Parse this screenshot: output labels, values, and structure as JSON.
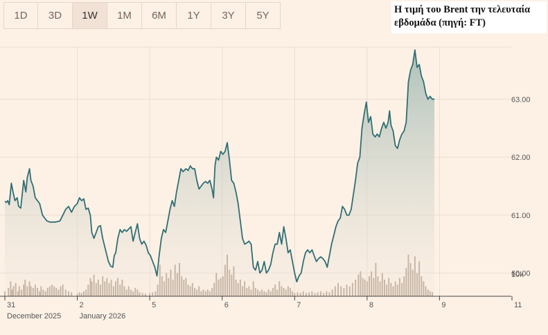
{
  "tabs": [
    "1D",
    "3D",
    "1W",
    "1M",
    "6M",
    "1Y",
    "3Y",
    "5Y"
  ],
  "active_tab": "1W",
  "colors": {
    "line": "#2f6e73",
    "volume": "#c7b6a6",
    "background": "#fdf1e6"
  },
  "chart_data": {
    "type": "line",
    "title": "Η τιμή του Brent την τελευταία εβδομάδα (πηγή: FT)",
    "ylim": [
      59.6,
      63.9
    ],
    "yticks": [
      60,
      61,
      62,
      63
    ],
    "ytick_labels": [
      "60.00",
      "61.00",
      "62.00",
      "63.00"
    ],
    "volume_label": "10k",
    "x_ticks": [
      {
        "x": 0,
        "label": "31",
        "sub": "December 2025"
      },
      {
        "x": 1,
        "label": "2",
        "sub": "January 2026"
      },
      {
        "x": 2,
        "label": "5"
      },
      {
        "x": 3,
        "label": "6"
      },
      {
        "x": 4,
        "label": "7"
      },
      {
        "x": 5,
        "label": "8"
      },
      {
        "x": 6,
        "label": "9"
      },
      {
        "x": 7,
        "label": "11"
      }
    ],
    "grid": true,
    "legend": "none",
    "price_series": [
      [
        0.0,
        61.24
      ],
      [
        0.02,
        61.22
      ],
      [
        0.04,
        61.25
      ],
      [
        0.06,
        61.18
      ],
      [
        0.09,
        61.55
      ],
      [
        0.11,
        61.42
      ],
      [
        0.14,
        61.25
      ],
      [
        0.17,
        61.3
      ],
      [
        0.19,
        61.15
      ],
      [
        0.22,
        61.12
      ],
      [
        0.26,
        61.6
      ],
      [
        0.29,
        61.4
      ],
      [
        0.31,
        61.65
      ],
      [
        0.34,
        61.8
      ],
      [
        0.36,
        61.6
      ],
      [
        0.39,
        61.5
      ],
      [
        0.42,
        61.3
      ],
      [
        0.45,
        61.25
      ],
      [
        0.48,
        61.2
      ],
      [
        0.52,
        61.0
      ],
      [
        0.55,
        60.95
      ],
      [
        0.58,
        60.9
      ],
      [
        0.62,
        60.88
      ],
      [
        0.7,
        60.88
      ],
      [
        0.76,
        60.9
      ],
      [
        0.8,
        61.0
      ],
      [
        0.84,
        61.1
      ],
      [
        0.88,
        61.15
      ],
      [
        0.92,
        61.05
      ],
      [
        0.96,
        61.15
      ],
      [
        1.0,
        61.2
      ],
      [
        1.03,
        61.3
      ],
      [
        1.06,
        61.25
      ],
      [
        1.09,
        61.28
      ],
      [
        1.12,
        61.1
      ],
      [
        1.15,
        61.12
      ],
      [
        1.18,
        61.0
      ],
      [
        1.2,
        60.7
      ],
      [
        1.23,
        60.6
      ],
      [
        1.26,
        60.7
      ],
      [
        1.29,
        60.8
      ],
      [
        1.32,
        60.82
      ],
      [
        1.35,
        60.6
      ],
      [
        1.38,
        60.45
      ],
      [
        1.4,
        60.35
      ],
      [
        1.43,
        60.2
      ],
      [
        1.46,
        60.12
      ],
      [
        1.49,
        60.1
      ],
      [
        1.51,
        60.3
      ],
      [
        1.53,
        60.35
      ],
      [
        1.56,
        60.6
      ],
      [
        1.59,
        60.75
      ],
      [
        1.62,
        60.7
      ],
      [
        1.65,
        60.75
      ],
      [
        1.68,
        60.72
      ],
      [
        1.71,
        60.76
      ],
      [
        1.74,
        60.8
      ],
      [
        1.77,
        60.55
      ],
      [
        1.8,
        60.7
      ],
      [
        1.83,
        60.85
      ],
      [
        1.86,
        60.6
      ],
      [
        1.89,
        60.5
      ],
      [
        1.92,
        60.55
      ],
      [
        1.95,
        60.48
      ],
      [
        1.98,
        60.35
      ],
      [
        2.01,
        60.3
      ],
      [
        2.04,
        60.2
      ],
      [
        2.07,
        60.1
      ],
      [
        2.1,
        59.95
      ],
      [
        2.13,
        60.3
      ],
      [
        2.16,
        60.6
      ],
      [
        2.19,
        60.75
      ],
      [
        2.22,
        60.7
      ],
      [
        2.25,
        60.9
      ],
      [
        2.28,
        61.1
      ],
      [
        2.31,
        61.25
      ],
      [
        2.34,
        61.15
      ],
      [
        2.37,
        61.4
      ],
      [
        2.4,
        61.6
      ],
      [
        2.43,
        61.8
      ],
      [
        2.46,
        61.75
      ],
      [
        2.5,
        61.8
      ],
      [
        2.53,
        61.77
      ],
      [
        2.56,
        61.85
      ],
      [
        2.59,
        61.8
      ],
      [
        2.62,
        61.8
      ],
      [
        2.65,
        61.6
      ],
      [
        2.68,
        61.45
      ],
      [
        2.71,
        61.5
      ],
      [
        2.74,
        61.55
      ],
      [
        2.77,
        61.58
      ],
      [
        2.8,
        61.55
      ],
      [
        2.83,
        61.6
      ],
      [
        2.86,
        61.45
      ],
      [
        2.88,
        61.3
      ],
      [
        2.9,
        61.85
      ],
      [
        2.92,
        62.0
      ],
      [
        2.95,
        61.95
      ],
      [
        2.98,
        62.1
      ],
      [
        3.01,
        62.05
      ],
      [
        3.04,
        62.1
      ],
      [
        3.07,
        62.25
      ],
      [
        3.1,
        61.95
      ],
      [
        3.13,
        61.6
      ],
      [
        3.16,
        61.55
      ],
      [
        3.19,
        61.4
      ],
      [
        3.22,
        61.2
      ],
      [
        3.25,
        60.9
      ],
      [
        3.28,
        60.6
      ],
      [
        3.31,
        60.5
      ],
      [
        3.34,
        60.52
      ],
      [
        3.37,
        60.55
      ],
      [
        3.4,
        60.5
      ],
      [
        3.43,
        60.1
      ],
      [
        3.46,
        60.05
      ],
      [
        3.49,
        60.2
      ],
      [
        3.52,
        60.0
      ],
      [
        3.55,
        60.05
      ],
      [
        3.58,
        60.2
      ],
      [
        3.61,
        60.0
      ],
      [
        3.64,
        60.05
      ],
      [
        3.67,
        60.15
      ],
      [
        3.7,
        60.35
      ],
      [
        3.73,
        60.5
      ],
      [
        3.76,
        60.5
      ],
      [
        3.79,
        60.7
      ],
      [
        3.82,
        60.5
      ],
      [
        3.85,
        60.8
      ],
      [
        3.88,
        60.6
      ],
      [
        3.91,
        60.35
      ],
      [
        3.94,
        60.4
      ],
      [
        3.97,
        60.2
      ],
      [
        4.0,
        60.0
      ],
      [
        4.03,
        59.85
      ],
      [
        4.06,
        59.95
      ],
      [
        4.09,
        60.0
      ],
      [
        4.12,
        60.2
      ],
      [
        4.15,
        60.35
      ],
      [
        4.18,
        60.4
      ],
      [
        4.21,
        60.35
      ],
      [
        4.24,
        60.4
      ],
      [
        4.27,
        60.3
      ],
      [
        4.3,
        60.2
      ],
      [
        4.33,
        60.25
      ],
      [
        4.36,
        60.28
      ],
      [
        4.39,
        60.25
      ],
      [
        4.42,
        60.2
      ],
      [
        4.45,
        60.1
      ],
      [
        4.48,
        60.3
      ],
      [
        4.51,
        60.5
      ],
      [
        4.54,
        60.65
      ],
      [
        4.57,
        60.8
      ],
      [
        4.6,
        60.9
      ],
      [
        4.63,
        60.95
      ],
      [
        4.66,
        61.15
      ],
      [
        4.69,
        61.1
      ],
      [
        4.72,
        61.0
      ],
      [
        4.75,
        61.0
      ],
      [
        4.78,
        61.1
      ],
      [
        4.81,
        61.35
      ],
      [
        4.84,
        61.6
      ],
      [
        4.87,
        61.9
      ],
      [
        4.9,
        62.0
      ],
      [
        4.93,
        62.5
      ],
      [
        4.96,
        62.75
      ],
      [
        4.99,
        62.95
      ],
      [
        5.02,
        62.6
      ],
      [
        5.05,
        62.7
      ],
      [
        5.08,
        62.4
      ],
      [
        5.11,
        62.35
      ],
      [
        5.14,
        62.4
      ],
      [
        5.17,
        62.35
      ],
      [
        5.2,
        62.5
      ],
      [
        5.23,
        62.6
      ],
      [
        5.26,
        62.5
      ],
      [
        5.29,
        62.6
      ],
      [
        5.31,
        62.8
      ],
      [
        5.33,
        62.55
      ],
      [
        5.36,
        62.45
      ],
      [
        5.39,
        62.2
      ],
      [
        5.42,
        62.15
      ],
      [
        5.45,
        62.3
      ],
      [
        5.48,
        62.4
      ],
      [
        5.51,
        62.45
      ],
      [
        5.54,
        62.6
      ],
      [
        5.57,
        63.3
      ],
      [
        5.6,
        63.5
      ],
      [
        5.63,
        63.6
      ],
      [
        5.66,
        63.85
      ],
      [
        5.69,
        63.55
      ],
      [
        5.72,
        63.6
      ],
      [
        5.75,
        63.4
      ],
      [
        5.78,
        63.3
      ],
      [
        5.81,
        63.1
      ],
      [
        5.84,
        63.0
      ],
      [
        5.87,
        63.05
      ],
      [
        5.9,
        63.0
      ],
      [
        5.93,
        63.0
      ]
    ],
    "volume_series": [
      [
        0.0,
        0.15
      ],
      [
        0.05,
        0.25
      ],
      [
        0.08,
        0.45
      ],
      [
        0.1,
        0.2
      ],
      [
        0.12,
        0.3
      ],
      [
        0.15,
        0.4
      ],
      [
        0.18,
        0.15
      ],
      [
        0.2,
        0.3
      ],
      [
        0.23,
        0.2
      ],
      [
        0.26,
        0.35
      ],
      [
        0.28,
        0.5
      ],
      [
        0.31,
        0.3
      ],
      [
        0.34,
        0.45
      ],
      [
        0.36,
        0.3
      ],
      [
        0.39,
        0.25
      ],
      [
        0.42,
        0.35
      ],
      [
        0.45,
        0.25
      ],
      [
        0.48,
        0.15
      ],
      [
        0.5,
        0.3
      ],
      [
        0.53,
        0.2
      ],
      [
        0.56,
        0.15
      ],
      [
        0.59,
        0.25
      ],
      [
        0.62,
        0.3
      ],
      [
        0.65,
        0.35
      ],
      [
        0.68,
        0.3
      ],
      [
        0.71,
        0.25
      ],
      [
        0.74,
        0.2
      ],
      [
        0.77,
        0.3
      ],
      [
        0.8,
        0.35
      ],
      [
        0.84,
        0.2
      ],
      [
        0.88,
        0.15
      ],
      [
        0.92,
        0.12
      ],
      [
        1.0,
        0.08
      ],
      [
        1.03,
        0.12
      ],
      [
        1.06,
        0.1
      ],
      [
        1.09,
        0.15
      ],
      [
        1.12,
        0.2
      ],
      [
        1.15,
        0.35
      ],
      [
        1.18,
        0.55
      ],
      [
        1.2,
        0.45
      ],
      [
        1.23,
        0.65
      ],
      [
        1.26,
        0.4
      ],
      [
        1.29,
        0.5
      ],
      [
        1.32,
        0.35
      ],
      [
        1.35,
        0.6
      ],
      [
        1.38,
        0.45
      ],
      [
        1.41,
        0.55
      ],
      [
        1.44,
        0.4
      ],
      [
        1.47,
        0.5
      ],
      [
        1.5,
        0.3
      ],
      [
        1.53,
        0.45
      ],
      [
        1.56,
        0.55
      ],
      [
        1.59,
        0.35
      ],
      [
        1.62,
        0.5
      ],
      [
        1.65,
        0.3
      ],
      [
        1.68,
        0.2
      ],
      [
        1.71,
        0.3
      ],
      [
        1.74,
        0.2
      ],
      [
        1.77,
        0.15
      ],
      [
        1.8,
        0.25
      ],
      [
        1.83,
        0.2
      ],
      [
        1.86,
        0.12
      ],
      [
        1.9,
        0.1
      ],
      [
        1.94,
        0.08
      ],
      [
        2.0,
        0.1
      ],
      [
        2.04,
        0.12
      ],
      [
        2.08,
        0.15
      ],
      [
        2.11,
        0.35
      ],
      [
        2.14,
        0.95
      ],
      [
        2.17,
        0.6
      ],
      [
        2.2,
        0.45
      ],
      [
        2.23,
        0.7
      ],
      [
        2.26,
        0.55
      ],
      [
        2.29,
        0.8
      ],
      [
        2.32,
        0.5
      ],
      [
        2.35,
        0.95
      ],
      [
        2.38,
        0.7
      ],
      [
        2.41,
        1.0
      ],
      [
        2.44,
        0.6
      ],
      [
        2.47,
        0.5
      ],
      [
        2.5,
        0.55
      ],
      [
        2.53,
        0.35
      ],
      [
        2.56,
        0.3
      ],
      [
        2.59,
        0.4
      ],
      [
        2.62,
        0.25
      ],
      [
        2.65,
        0.2
      ],
      [
        2.68,
        0.3
      ],
      [
        2.71,
        0.15
      ],
      [
        2.74,
        0.2
      ],
      [
        2.77,
        0.15
      ],
      [
        2.8,
        0.2
      ],
      [
        2.83,
        0.15
      ],
      [
        2.86,
        0.25
      ],
      [
        2.89,
        0.4
      ],
      [
        2.92,
        0.7
      ],
      [
        2.95,
        0.5
      ],
      [
        2.98,
        0.55
      ],
      [
        3.01,
        0.6
      ],
      [
        3.04,
        0.95
      ],
      [
        3.07,
        1.25
      ],
      [
        3.1,
        0.8
      ],
      [
        3.13,
        0.65
      ],
      [
        3.16,
        0.9
      ],
      [
        3.19,
        0.5
      ],
      [
        3.22,
        0.4
      ],
      [
        3.25,
        0.5
      ],
      [
        3.28,
        0.3
      ],
      [
        3.31,
        0.45
      ],
      [
        3.34,
        0.25
      ],
      [
        3.37,
        0.3
      ],
      [
        3.4,
        0.2
      ],
      [
        3.43,
        0.45
      ],
      [
        3.46,
        0.25
      ],
      [
        3.49,
        0.2
      ],
      [
        3.52,
        0.15
      ],
      [
        3.55,
        0.2
      ],
      [
        3.58,
        0.15
      ],
      [
        3.61,
        0.12
      ],
      [
        3.64,
        0.2
      ],
      [
        3.67,
        0.15
      ],
      [
        3.7,
        0.25
      ],
      [
        3.73,
        0.35
      ],
      [
        3.76,
        0.2
      ],
      [
        3.79,
        0.45
      ],
      [
        3.82,
        0.3
      ],
      [
        3.85,
        0.25
      ],
      [
        3.88,
        0.2
      ],
      [
        3.91,
        0.3
      ],
      [
        3.94,
        0.25
      ],
      [
        3.97,
        0.15
      ],
      [
        4.0,
        0.1
      ],
      [
        4.04,
        0.12
      ],
      [
        4.08,
        0.1
      ],
      [
        4.12,
        0.15
      ],
      [
        4.16,
        0.1
      ],
      [
        4.2,
        0.12
      ],
      [
        4.24,
        0.15
      ],
      [
        4.28,
        0.1
      ],
      [
        4.32,
        0.12
      ],
      [
        4.36,
        0.15
      ],
      [
        4.4,
        0.1
      ],
      [
        4.44,
        0.15
      ],
      [
        4.48,
        0.12
      ],
      [
        4.52,
        0.2
      ],
      [
        4.56,
        0.3
      ],
      [
        4.6,
        0.4
      ],
      [
        4.64,
        0.3
      ],
      [
        4.68,
        0.25
      ],
      [
        4.72,
        0.35
      ],
      [
        4.76,
        0.3
      ],
      [
        4.8,
        0.4
      ],
      [
        4.84,
        0.5
      ],
      [
        4.88,
        0.65
      ],
      [
        4.91,
        0.75
      ],
      [
        4.94,
        0.55
      ],
      [
        4.97,
        0.5
      ],
      [
        5.0,
        0.45
      ],
      [
        5.03,
        0.6
      ],
      [
        5.06,
        0.75
      ],
      [
        5.09,
        0.55
      ],
      [
        5.12,
        1.0
      ],
      [
        5.15,
        0.6
      ],
      [
        5.18,
        0.45
      ],
      [
        5.21,
        0.7
      ],
      [
        5.24,
        0.5
      ],
      [
        5.27,
        0.35
      ],
      [
        5.3,
        0.55
      ],
      [
        5.33,
        0.4
      ],
      [
        5.36,
        0.3
      ],
      [
        5.39,
        0.45
      ],
      [
        5.42,
        0.35
      ],
      [
        5.45,
        0.55
      ],
      [
        5.48,
        0.4
      ],
      [
        5.51,
        0.6
      ],
      [
        5.54,
        0.85
      ],
      [
        5.57,
        1.25
      ],
      [
        5.6,
        1.0
      ],
      [
        5.63,
        0.8
      ],
      [
        5.66,
        1.2
      ],
      [
        5.69,
        0.7
      ],
      [
        5.72,
        1.05
      ],
      [
        5.75,
        0.6
      ],
      [
        5.78,
        0.45
      ],
      [
        5.81,
        0.3
      ],
      [
        5.84,
        0.2
      ],
      [
        5.87,
        0.15
      ],
      [
        5.9,
        0.12
      ]
    ]
  }
}
